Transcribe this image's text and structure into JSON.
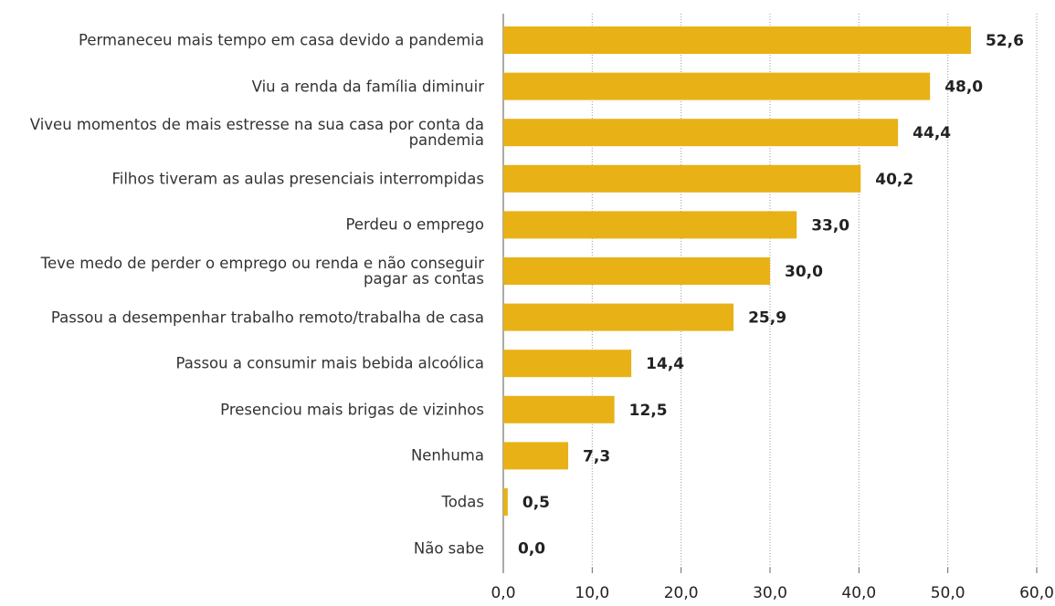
{
  "chart_data": {
    "type": "bar",
    "orientation": "horizontal",
    "categories": [
      "Permaneceu mais tempo em casa devido a pandemia",
      "Viu a renda da família diminuir",
      "Viveu momentos de mais estresse na sua casa por conta da pandemia",
      "Filhos tiveram as aulas presenciais interrompidas",
      "Perdeu o emprego",
      "Teve medo de perder o emprego ou renda e não conseguir pagar as contas",
      "Passou a desempenhar trabalho remoto/trabalha de casa",
      "Passou a consumir mais bebida alcoólica",
      "Presenciou mais brigas de vizinhos",
      "Nenhuma",
      "Todas",
      "Não sabe"
    ],
    "values": [
      52.6,
      48.0,
      44.4,
      40.2,
      33.0,
      30.0,
      25.9,
      14.4,
      12.5,
      7.3,
      0.5,
      0.0
    ],
    "value_labels": [
      "52,6",
      "48,0",
      "44,4",
      "40,2",
      "33,0",
      "30,0",
      "25,9",
      "14,4",
      "12,5",
      "7,3",
      "0,5",
      "0,0"
    ],
    "color": "#e8b116",
    "xlim": [
      0,
      60
    ],
    "xticks": [
      {
        "value": 0,
        "label": "0,0"
      },
      {
        "value": 10,
        "label": "10,0"
      },
      {
        "value": 20,
        "label": "20,0"
      },
      {
        "value": 30,
        "label": "30,0"
      },
      {
        "value": 40,
        "label": "40,0"
      },
      {
        "value": 50,
        "label": "50,0"
      },
      {
        "value": 60,
        "label": "60,0"
      }
    ],
    "grid": true
  }
}
